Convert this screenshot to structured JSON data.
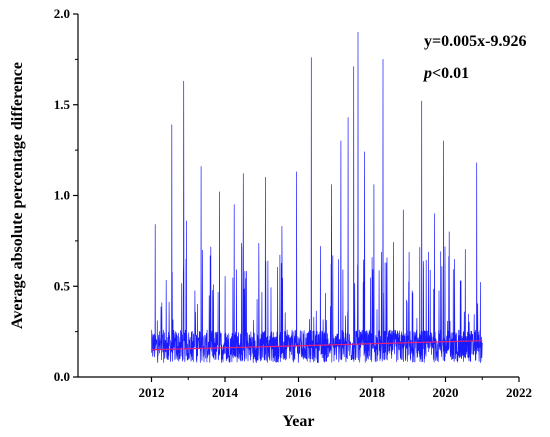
{
  "chart_data": {
    "type": "line",
    "xlabel": "Year",
    "ylabel": "Average absolute percentage difference",
    "xlim": [
      2010,
      2022
    ],
    "ylim": [
      0.0,
      2.0
    ],
    "x_ticks": [
      2012,
      2014,
      2016,
      2018,
      2020,
      2022
    ],
    "x_tick_labels": [
      "2012",
      "2014",
      "2016",
      "2018",
      "2020",
      "2022"
    ],
    "y_ticks": [
      0.0,
      0.5,
      1.0,
      1.5,
      2.0
    ],
    "y_tick_labels": [
      "0.0",
      "0.5",
      "1.0",
      "1.5",
      "2.0"
    ],
    "series": [
      {
        "style": "line",
        "color": "#1a1aff",
        "x_start": 2012.0,
        "x_end": 2021.0,
        "baseline": 0.16,
        "peaks": [
          {
            "x": 2012.1,
            "y": 0.84
          },
          {
            "x": 2012.55,
            "y": 1.39
          },
          {
            "x": 2012.88,
            "y": 1.63
          },
          {
            "x": 2012.95,
            "y": 0.86
          },
          {
            "x": 2013.35,
            "y": 1.16
          },
          {
            "x": 2013.85,
            "y": 1.02
          },
          {
            "x": 2014.25,
            "y": 0.95
          },
          {
            "x": 2014.5,
            "y": 1.12
          },
          {
            "x": 2015.1,
            "y": 1.1
          },
          {
            "x": 2015.55,
            "y": 0.83
          },
          {
            "x": 2015.95,
            "y": 1.13
          },
          {
            "x": 2016.35,
            "y": 1.76
          },
          {
            "x": 2016.9,
            "y": 1.06
          },
          {
            "x": 2017.15,
            "y": 1.3
          },
          {
            "x": 2017.35,
            "y": 1.43
          },
          {
            "x": 2017.5,
            "y": 1.71
          },
          {
            "x": 2017.62,
            "y": 1.9
          },
          {
            "x": 2017.8,
            "y": 1.24
          },
          {
            "x": 2018.05,
            "y": 1.06
          },
          {
            "x": 2018.3,
            "y": 1.75
          },
          {
            "x": 2018.85,
            "y": 0.92
          },
          {
            "x": 2019.35,
            "y": 1.52
          },
          {
            "x": 2019.7,
            "y": 0.9
          },
          {
            "x": 2019.95,
            "y": 1.3
          },
          {
            "x": 2020.1,
            "y": 0.8
          },
          {
            "x": 2020.85,
            "y": 1.18
          }
        ]
      },
      {
        "style": "trend",
        "color": "#e0207a",
        "x": [
          2012.0,
          2021.0
        ],
        "y": [
          0.15,
          0.2
        ]
      }
    ],
    "annotations": {
      "equation": "y=0.005x-9.926",
      "p_symbol": "p",
      "p_rest": "<0.01"
    }
  }
}
